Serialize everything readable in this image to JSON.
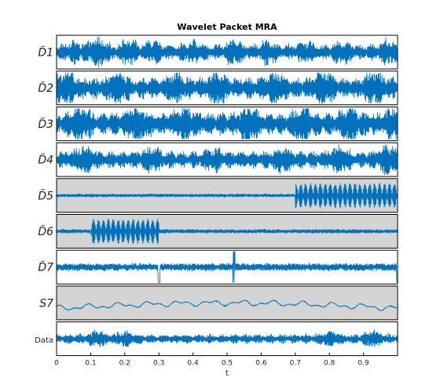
{
  "chart_data": {
    "type": "line",
    "title": "Wavelet Packet MRA",
    "xlabel": "t",
    "xlim": [
      0,
      1
    ],
    "x_ticks": [
      0,
      0.1,
      0.2,
      0.3,
      0.4,
      0.5,
      0.6,
      0.7,
      0.8,
      0.9
    ],
    "x_tick_labels": [
      "0",
      "0.1",
      "0.2",
      "0.3",
      "0.4",
      "0.5",
      "0.6",
      "0.7",
      "0.8",
      "0.9"
    ],
    "line_color": "#0072BD",
    "highlight_color": "#D4D4D4",
    "panels": [
      {
        "label": "D̃1",
        "label_style": "math",
        "highlighted": false,
        "description": "high-frequency oscillation, amplitude bursts",
        "baseline": 0,
        "amplitude": 0.55,
        "bursts": [
          [
            0.05,
            0.6
          ],
          [
            0.12,
            1.0
          ],
          [
            0.21,
            0.8
          ],
          [
            0.28,
            0.7
          ],
          [
            0.4,
            0.6
          ],
          [
            0.52,
            0.8
          ],
          [
            0.62,
            0.7
          ],
          [
            0.73,
            0.6
          ],
          [
            0.84,
            0.7
          ],
          [
            0.97,
            0.8
          ]
        ]
      },
      {
        "label": "D̃2",
        "label_style": "math",
        "highlighted": false,
        "description": "high-frequency oscillation, dense bursts",
        "baseline": 0,
        "amplitude": 0.75,
        "bursts": [
          [
            0.03,
            0.9
          ],
          [
            0.18,
            0.8
          ],
          [
            0.35,
            0.7
          ],
          [
            0.47,
            0.8
          ],
          [
            0.64,
            0.7
          ],
          [
            0.78,
            0.9
          ],
          [
            0.93,
            0.8
          ]
        ]
      },
      {
        "label": "D̃3",
        "label_style": "math",
        "highlighted": false,
        "description": "high-frequency oscillation, dense bursts",
        "baseline": 0,
        "amplitude": 0.8,
        "bursts": [
          [
            0.07,
            0.9
          ],
          [
            0.24,
            0.9
          ],
          [
            0.38,
            0.8
          ],
          [
            0.56,
            0.8
          ],
          [
            0.72,
            0.9
          ],
          [
            0.86,
            0.9
          ],
          [
            0.99,
            0.8
          ]
        ]
      },
      {
        "label": "D̃4",
        "label_style": "math",
        "highlighted": false,
        "description": "mid-high frequency oscillation",
        "baseline": 0,
        "amplitude": 0.6,
        "bursts": [
          [
            0.08,
            0.8
          ],
          [
            0.28,
            0.7
          ],
          [
            0.46,
            0.6
          ],
          [
            0.66,
            0.7
          ],
          [
            0.83,
            0.8
          ],
          [
            0.97,
            1.0
          ]
        ]
      },
      {
        "label": "D̃5",
        "label_style": "math",
        "highlighted": true,
        "description": "low-amplitude oscillation, strong regular oscillation for t > 0.7",
        "baseline": 0,
        "amplitude": 0.2,
        "segments": [
          {
            "t_start": 0.7,
            "t_end": 1.0,
            "amplitude": 0.85
          }
        ]
      },
      {
        "label": "D̃6",
        "label_style": "math",
        "highlighted": true,
        "description": "strong oscillation between t = 0.1 and t = 0.3, low elsewhere",
        "baseline": 0,
        "amplitude": 0.25,
        "segments": [
          {
            "t_start": 0.1,
            "t_end": 0.3,
            "amplitude": 0.85
          }
        ]
      },
      {
        "label": "D̃7",
        "label_style": "math",
        "highlighted": false,
        "description": "medium-frequency oscillation with spikes near t = 0.3, 0.52, 1.0",
        "baseline": 0,
        "amplitude": 0.45,
        "spikes": [
          0.3,
          0.52,
          1.0
        ]
      },
      {
        "label": "S7",
        "label_style": "math",
        "highlighted": true,
        "description": "slow smooth trend, rising toward center then falling",
        "baseline": -0.1,
        "amplitude": 0.35
      },
      {
        "label": "Data",
        "label_style": "text",
        "highlighted": false,
        "description": "original signal",
        "baseline": 0,
        "amplitude": 0.6,
        "bursts": [
          [
            0.12,
            0.9
          ],
          [
            0.2,
            0.8
          ],
          [
            0.8,
            0.9
          ],
          [
            0.93,
            1.0
          ]
        ]
      }
    ]
  }
}
